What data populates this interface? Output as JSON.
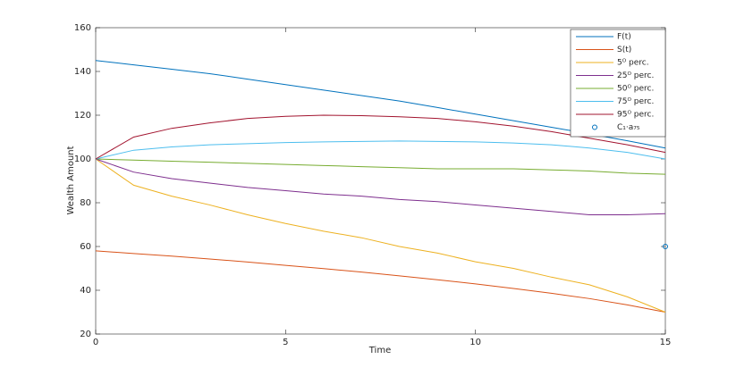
{
  "chart_data": {
    "type": "line",
    "xlabel": "Time",
    "ylabel": "Wealth Amount",
    "x": [
      0,
      1,
      2,
      3,
      4,
      5,
      6,
      7,
      8,
      9,
      10,
      11,
      12,
      13,
      14,
      15
    ],
    "xlim": [
      0,
      15
    ],
    "xticks": [
      0,
      5,
      10,
      15
    ],
    "ylim": [
      20,
      160
    ],
    "yticks": [
      20,
      40,
      60,
      80,
      100,
      120,
      140,
      160
    ],
    "grid": false,
    "legend": "top-right",
    "series": [
      {
        "name": "F(t)",
        "color": "#0072bd",
        "values": [
          145,
          143,
          141,
          139,
          136.5,
          134,
          131.5,
          129,
          126.5,
          123.5,
          120.5,
          117.5,
          114.5,
          111.5,
          108.3,
          105
        ]
      },
      {
        "name": "S(t)",
        "color": "#d95319",
        "values": [
          58,
          56.8,
          55.6,
          54.3,
          52.9,
          51.4,
          49.9,
          48.3,
          46.6,
          44.8,
          42.9,
          40.8,
          38.6,
          36.2,
          33.3,
          30
        ]
      },
      {
        "name": "5ᴼ perc.",
        "color": "#edb120",
        "values": [
          100,
          88,
          83,
          79,
          74.5,
          70.5,
          67,
          64,
          60,
          57,
          53,
          50,
          46,
          42.5,
          37,
          30
        ]
      },
      {
        "name": "25ᴼ perc.",
        "color": "#7e2f8e",
        "values": [
          100,
          94,
          91,
          89,
          87,
          85.5,
          84,
          83,
          81.5,
          80.5,
          79,
          77.5,
          76,
          74.5,
          74.5,
          75
        ]
      },
      {
        "name": "50ᴼ perc.",
        "color": "#77ac30",
        "values": [
          100,
          99.5,
          99,
          98.5,
          98,
          97.5,
          97,
          96.5,
          96,
          95.5,
          95.5,
          95.5,
          95,
          94.5,
          93.5,
          93
        ]
      },
      {
        "name": "75ᴼ perc.",
        "color": "#4dbeee",
        "values": [
          100,
          104,
          105.5,
          106.5,
          107,
          107.5,
          107.8,
          108,
          108.2,
          108,
          107.8,
          107.3,
          106.5,
          105,
          103,
          100
        ]
      },
      {
        "name": "95ᴼ perc.",
        "color": "#a2142f",
        "values": [
          100,
          110,
          114,
          116.5,
          118.5,
          119.5,
          120,
          119.8,
          119.3,
          118.5,
          117,
          115,
          112.5,
          109.5,
          106.5,
          103
        ]
      },
      {
        "name": "C₁·a₇₅",
        "color": "#0072bd",
        "type": "scatter",
        "x": [
          15
        ],
        "values": [
          60
        ]
      }
    ]
  }
}
